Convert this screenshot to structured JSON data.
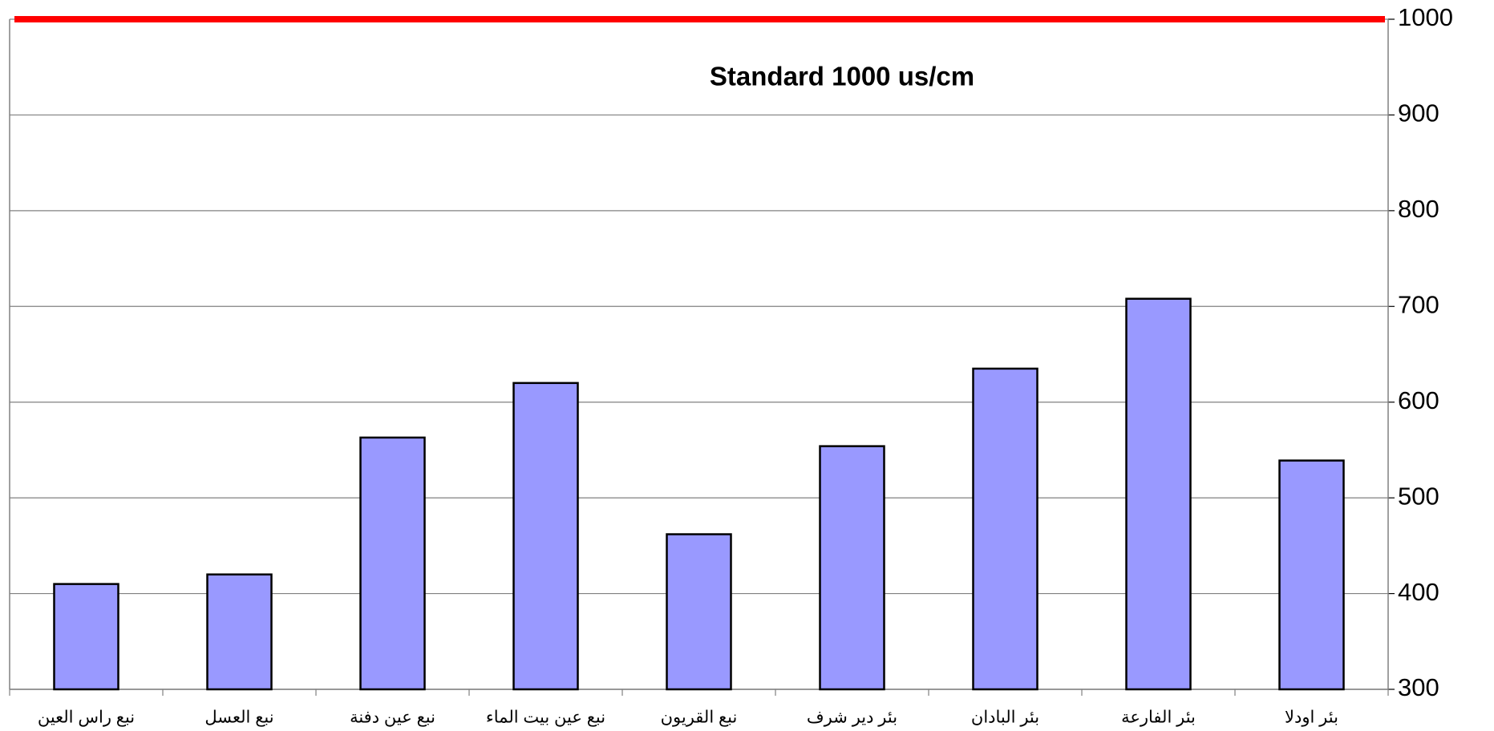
{
  "chart_data": {
    "type": "bar",
    "title": "Standard 1000 us/cm",
    "categories": [
      "نبع راس العين",
      "نبع العسل",
      "نبع عين دفنة",
      "نبع عين بيت الماء",
      "نبع القريون",
      "بئر دير شرف",
      "بئر البادان",
      "بئر الفارعة",
      "بئر اودلا"
    ],
    "values": [
      410,
      420,
      563,
      620,
      462,
      554,
      635,
      708,
      539
    ],
    "color": "#9999ff",
    "ylim": [
      300,
      1000
    ],
    "yticks": [
      300,
      400,
      500,
      600,
      700,
      800,
      900,
      1000
    ],
    "grid": true,
    "y_axis_side": "right",
    "reference_line": {
      "value": 1000,
      "color": "#ff0000"
    }
  }
}
